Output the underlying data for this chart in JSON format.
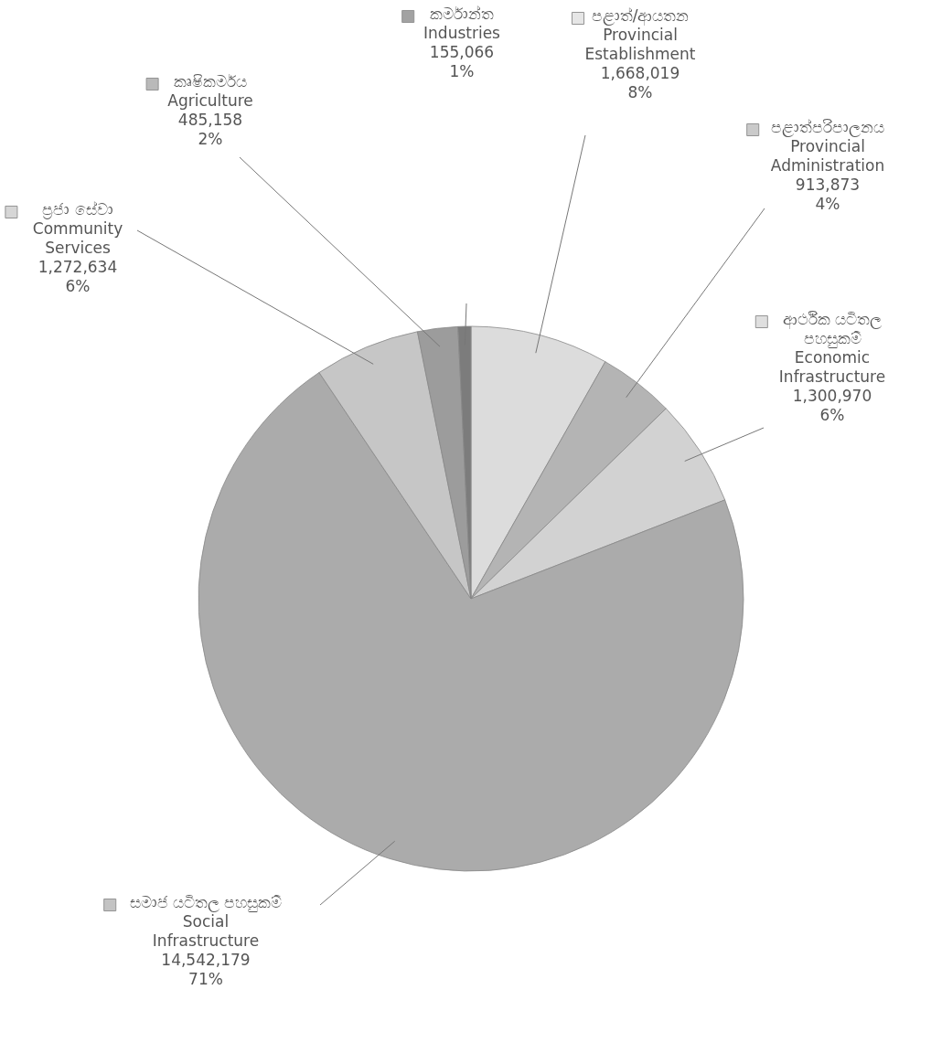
{
  "chart_data": {
    "type": "pie",
    "categories": [
      "පළාත්/ආයතන\nProvincial\nEstablishment",
      "පළාත්පරිපාලනය\nProvincial\nAdministration",
      "ආර්ථික යටිතල\nපහසුකම්\nEconomic\nInfrastructure",
      "සමාජ යටිතල පහසුකම්\nSocial\nInfrastructure",
      "ප්‍රජා සේවා\nCommunity\nServices",
      "කෘෂිකර්මය\nAgriculture",
      "කර්මාන්ත\nIndustries"
    ],
    "values": [
      1668019,
      913873,
      1300970,
      14542179,
      1272634,
      485158,
      155066
    ],
    "value_labels": [
      "1,668,019\n8%",
      "913,873\n4%",
      "1,300,970\n6%",
      "14,542,179\n71%",
      "1,272,634\n6%",
      "485,158\n2%",
      "155,066\n1%"
    ],
    "legend": "top",
    "colors": [
      "#dcdcdc",
      "#b4b4b4",
      "#d2d2d2",
      "#ababab",
      "#c6c6c6",
      "#9c9c9c",
      "#7c7c7c"
    ]
  }
}
